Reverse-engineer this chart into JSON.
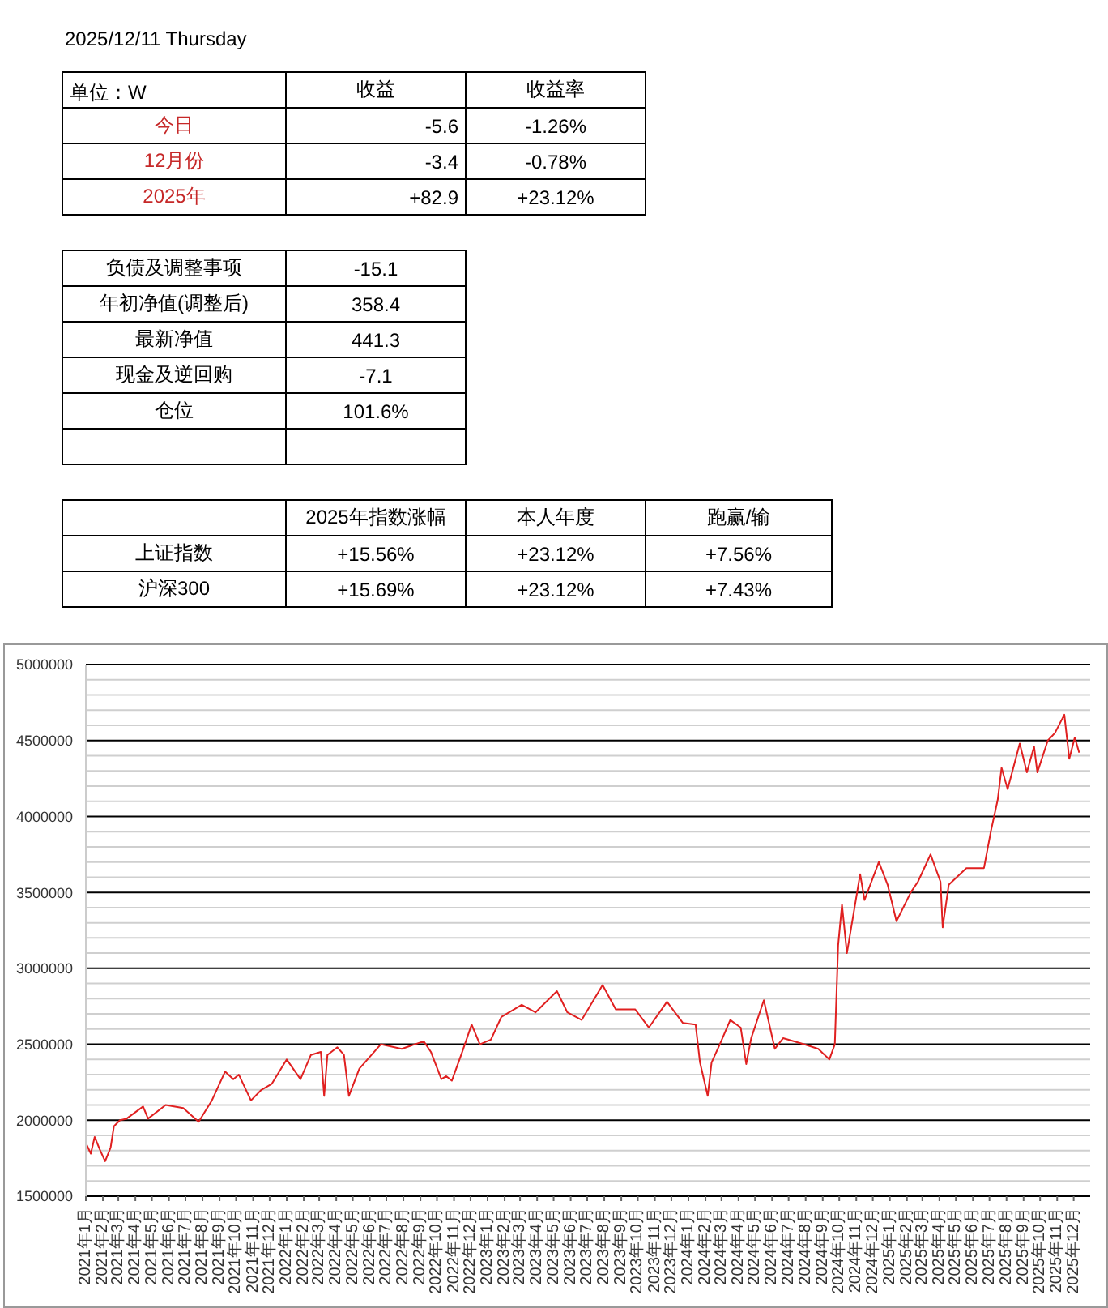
{
  "chart_data": [
    {
      "type": "other",
      "title": "2025/12/11  Thursday",
      "annotations": [
        "单位：W",
        "收益",
        "收益率",
        "今日",
        "-5.6",
        "-1.26%",
        "12月份",
        "-3.4",
        "-0.78%",
        "2025年",
        "+82.9",
        "+23.12%",
        "负债及调整事项",
        "-15.1",
        "年初净值(调整后)",
        "358.4",
        "最新净值",
        "441.3",
        "现金及逆回购",
        "-7.1",
        "仓位",
        "101.6%",
        "2025年指数涨幅",
        "本人年度",
        "跑赢/输",
        "上证指数",
        "+15.56%",
        "+23.12%",
        "+7.56%",
        "沪深300",
        "+15.69%",
        "+23.12%",
        "+7.43%"
      ]
    },
    {
      "type": "line",
      "grid": "y",
      "marker": "none",
      "xlim": [
        "2021-01-01",
        "2025-12-31"
      ],
      "xticks": [
        {
          "value": "2021-01",
          "label": "2021年1月"
        },
        {
          "value": "2021-02",
          "label": "2021年2月"
        },
        {
          "value": "2021-03",
          "label": "2021年3月"
        },
        {
          "value": "2021-04",
          "label": "2021年4月"
        },
        {
          "value": "2021-05",
          "label": "2021年5月"
        },
        {
          "value": "2021-06",
          "label": "2021年6月"
        },
        {
          "value": "2021-07",
          "label": "2021年7月"
        },
        {
          "value": "2021-08",
          "label": "2021年8月"
        },
        {
          "value": "2021-09",
          "label": "2021年9月"
        },
        {
          "value": "2021-10",
          "label": "2021年10月"
        },
        {
          "value": "2021-11",
          "label": "2021年11月"
        },
        {
          "value": "2021-12",
          "label": "2021年12月"
        },
        {
          "value": "2022-01",
          "label": "2022年1月"
        },
        {
          "value": "2022-02",
          "label": "2022年2月"
        },
        {
          "value": "2022-03",
          "label": "2022年3月"
        },
        {
          "value": "2022-04",
          "label": "2022年4月"
        },
        {
          "value": "2022-05",
          "label": "2022年5月"
        },
        {
          "value": "2022-06",
          "label": "2022年6月"
        },
        {
          "value": "2022-07",
          "label": "2022年7月"
        },
        {
          "value": "2022-08",
          "label": "2022年8月"
        },
        {
          "value": "2022-09",
          "label": "2022年9月"
        },
        {
          "value": "2022-10",
          "label": "2022年10月"
        },
        {
          "value": "2022-11",
          "label": "2022年11月"
        },
        {
          "value": "2022-12",
          "label": "2022年12月"
        },
        {
          "value": "2023-01",
          "label": "2023年1月"
        },
        {
          "value": "2023-02",
          "label": "2023年2月"
        },
        {
          "value": "2023-03",
          "label": "2023年3月"
        },
        {
          "value": "2023-04",
          "label": "2023年4月"
        },
        {
          "value": "2023-05",
          "label": "2023年5月"
        },
        {
          "value": "2023-06",
          "label": "2023年6月"
        },
        {
          "value": "2023-07",
          "label": "2023年7月"
        },
        {
          "value": "2023-08",
          "label": "2023年8月"
        },
        {
          "value": "2023-09",
          "label": "2023年9月"
        },
        {
          "value": "2023-10",
          "label": "2023年10月"
        },
        {
          "value": "2023-11",
          "label": "2023年11月"
        },
        {
          "value": "2023-12",
          "label": "2023年12月"
        },
        {
          "value": "2024-01",
          "label": "2024年1月"
        },
        {
          "value": "2024-02",
          "label": "2024年2月"
        },
        {
          "value": "2024-03",
          "label": "2024年3月"
        },
        {
          "value": "2024-04",
          "label": "2024年4月"
        },
        {
          "value": "2024-05",
          "label": "2024年5月"
        },
        {
          "value": "2024-06",
          "label": "2024年6月"
        },
        {
          "value": "2024-07",
          "label": "2024年7月"
        },
        {
          "value": "2024-08",
          "label": "2024年8月"
        },
        {
          "value": "2024-09",
          "label": "2024年9月"
        },
        {
          "value": "2024-10",
          "label": "2024年10月"
        },
        {
          "value": "2024-11",
          "label": "2024年11月"
        },
        {
          "value": "2024-12",
          "label": "2024年12月"
        },
        {
          "value": "2025-01",
          "label": "2025年1月"
        },
        {
          "value": "2025-02",
          "label": "2025年2月"
        },
        {
          "value": "2025-03",
          "label": "2025年3月"
        },
        {
          "value": "2025-04",
          "label": "2025年4月"
        },
        {
          "value": "2025-05",
          "label": "2025年5月"
        },
        {
          "value": "2025-06",
          "label": "2025年6月"
        },
        {
          "value": "2025-07",
          "label": "2025年7月"
        },
        {
          "value": "2025-08",
          "label": "2025年8月"
        },
        {
          "value": "2025-09",
          "label": "2025年9月"
        },
        {
          "value": "2025-10",
          "label": "2025年10月"
        },
        {
          "value": "2025-11",
          "label": "2025年11月"
        },
        {
          "value": "2025-12",
          "label": "2025年12月"
        }
      ],
      "ylim": [
        1500000,
        5000000
      ],
      "yticks": [
        1500000,
        {
          "value": 1600000,
          "label": null
        },
        {
          "value": 1700000,
          "label": null
        },
        {
          "value": 1800000,
          "label": null
        },
        {
          "value": 1900000,
          "label": null
        },
        2000000,
        {
          "value": 2100000,
          "label": null
        },
        {
          "value": 2200000,
          "label": null
        },
        {
          "value": 2300000,
          "label": null
        },
        {
          "value": 2400000,
          "label": null
        },
        2500000,
        {
          "value": 2600000,
          "label": null
        },
        {
          "value": 2700000,
          "label": null
        },
        {
          "value": 2800000,
          "label": null
        },
        {
          "value": 2900000,
          "label": null
        },
        3000000,
        {
          "value": 3100000,
          "label": null
        },
        {
          "value": 3200000,
          "label": null
        },
        {
          "value": 3300000,
          "label": null
        },
        {
          "value": 3400000,
          "label": null
        },
        3500000,
        {
          "value": 3600000,
          "label": null
        },
        {
          "value": 3700000,
          "label": null
        },
        {
          "value": 3800000,
          "label": null
        },
        {
          "value": 3900000,
          "label": null
        },
        4000000,
        {
          "value": 4100000,
          "label": null
        },
        {
          "value": 4200000,
          "label": null
        },
        {
          "value": 4300000,
          "label": null
        },
        {
          "value": 4400000,
          "label": null
        },
        4500000,
        {
          "value": 4600000,
          "label": null
        },
        {
          "value": 4700000,
          "label": null
        },
        {
          "value": 4800000,
          "label": null
        },
        {
          "value": 4900000,
          "label": null
        },
        5000000
      ],
      "series": [
        {
          "color": "#e02020",
          "x": [
            "2021-01-01",
            "2021-01-10",
            "2021-01-17",
            "2021-01-26",
            "2021-02-05",
            "2021-02-15",
            "2021-02-21",
            "2021-03-04",
            "2021-03-16",
            "2021-04-15",
            "2021-04-24",
            "2021-05-26",
            "2021-06-27",
            "2021-07-25",
            "2021-08-18",
            "2021-09-11",
            "2021-09-26",
            "2021-10-06",
            "2021-10-28",
            "2021-11-16",
            "2021-12-05",
            "2022-01-01",
            "2022-01-26",
            "2022-02-14",
            "2022-03-04",
            "2022-03-10",
            "2022-03-16",
            "2022-04-03",
            "2022-04-15",
            "2022-04-24",
            "2022-05-13",
            "2022-06-21",
            "2022-07-29",
            "2022-09-07",
            "2022-09-20",
            "2022-10-09",
            "2022-10-18",
            "2022-10-28",
            "2022-11-16",
            "2022-12-03",
            "2022-12-18",
            "2023-01-07",
            "2023-01-26",
            "2023-03-04",
            "2023-03-29",
            "2023-05-07",
            "2023-05-26",
            "2023-06-21",
            "2023-07-29",
            "2023-08-22",
            "2023-09-26",
            "2023-10-21",
            "2023-11-23",
            "2023-12-22",
            "2024-01-14",
            "2024-01-22",
            "2024-02-05",
            "2024-02-12",
            "2024-02-27",
            "2024-03-17",
            "2024-04-05",
            "2024-04-15",
            "2024-04-24",
            "2024-05-17",
            "2024-06-06",
            "2024-06-21",
            "2024-07-29",
            "2024-08-24",
            "2024-09-13",
            "2024-09-23",
            "2024-09-29",
            "2024-10-06",
            "2024-10-15",
            "2024-11-08",
            "2024-11-16",
            "2024-12-12",
            "2024-12-28",
            "2025-01-13",
            "2025-02-08",
            "2025-02-21",
            "2025-03-16",
            "2025-04-03",
            "2025-04-07",
            "2025-04-18",
            "2025-05-20",
            "2025-06-21",
            "2025-07-04",
            "2025-07-16",
            "2025-07-23",
            "2025-08-03",
            "2025-08-25",
            "2025-09-07",
            "2025-09-20",
            "2025-09-26",
            "2025-10-15",
            "2025-10-28",
            "2025-11-14",
            "2025-11-23",
            "2025-12-03",
            "2025-12-11"
          ],
          "values": [
            1850000,
            1780000,
            1890000,
            1810000,
            1730000,
            1820000,
            1960000,
            2000000,
            2010000,
            2090000,
            2010000,
            2100000,
            2080000,
            1990000,
            2130000,
            2320000,
            2270000,
            2300000,
            2130000,
            2200000,
            2240000,
            2400000,
            2270000,
            2430000,
            2450000,
            2160000,
            2430000,
            2480000,
            2430000,
            2160000,
            2340000,
            2500000,
            2470000,
            2520000,
            2450000,
            2270000,
            2290000,
            2260000,
            2450000,
            2630000,
            2500000,
            2530000,
            2680000,
            2760000,
            2710000,
            2850000,
            2710000,
            2660000,
            2890000,
            2730000,
            2730000,
            2610000,
            2780000,
            2640000,
            2630000,
            2380000,
            2160000,
            2380000,
            2500000,
            2660000,
            2610000,
            2370000,
            2540000,
            2790000,
            2470000,
            2540000,
            2500000,
            2470000,
            2400000,
            2500000,
            3150000,
            3420000,
            3100000,
            3620000,
            3450000,
            3700000,
            3550000,
            3310000,
            3500000,
            3570000,
            3750000,
            3570000,
            3270000,
            3550000,
            3660000,
            3660000,
            3910000,
            4110000,
            4320000,
            4180000,
            4480000,
            4290000,
            4460000,
            4290000,
            4500000,
            4550000,
            4670000,
            4380000,
            4520000,
            4420000
          ]
        }
      ]
    }
  ]
}
